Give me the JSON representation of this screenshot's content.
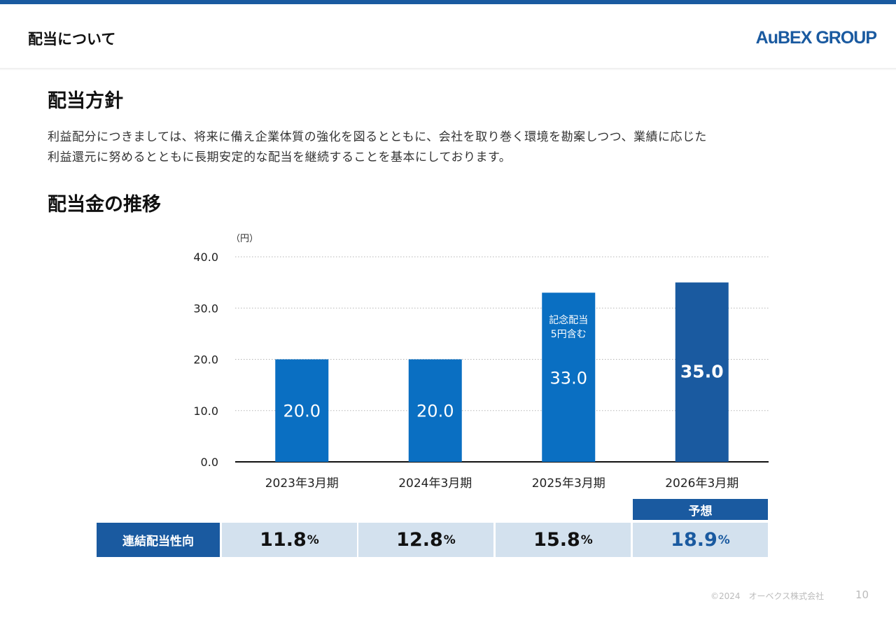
{
  "header": {
    "title": "配当について",
    "logo": "AuBEX GROUP",
    "accent_color": "#1a5aa0"
  },
  "policy": {
    "heading": "配当方針",
    "lines": [
      "利益配分につきましては、将来に備え企業体質の強化を図るとともに、会社を取り巻く環境を勘案しつつ、業績に応じた",
      "利益還元に努めるとともに長期安定的な配当を継続することを基本にしております。"
    ]
  },
  "chart_section": {
    "heading": "配当金の推移"
  },
  "chart_data": {
    "type": "bar",
    "ylabel": "（円）",
    "ylim": [
      0,
      40
    ],
    "yticks": [
      "0.0",
      "10.0",
      "20.0",
      "30.0",
      "40.0"
    ],
    "grid": true,
    "categories": [
      "2023年3月期",
      "2024年3月期",
      "2025年3月期",
      "2026年3月期"
    ],
    "values": [
      20.0,
      20.0,
      33.0,
      35.0
    ],
    "value_labels": [
      "20.0",
      "20.0",
      "33.0",
      "35.0"
    ],
    "bar_colors": [
      "#0a6fc2",
      "#0a6fc2",
      "#0a6fc2",
      "#1a5aa0"
    ],
    "annotation": {
      "category_index": 2,
      "lines": [
        "記念配当",
        "5円含む"
      ]
    }
  },
  "payout_table": {
    "row_label": "連結配当性向",
    "values": [
      "11.8",
      "12.8",
      "15.8",
      "18.9"
    ],
    "unit": "%",
    "forecast_label": "予想",
    "forecast_index": 3
  },
  "footer": {
    "copyright": "©2024　オーベクス株式会社",
    "page": "10"
  }
}
